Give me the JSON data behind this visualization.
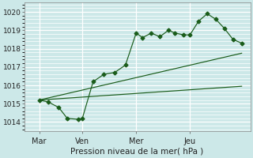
{
  "xlabel": "Pression niveau de la mer( hPa )",
  "bg_color": "#cce8e8",
  "grid_color": "#ffffff",
  "line_color": "#1a5c1a",
  "ylim": [
    1013.5,
    1020.5
  ],
  "xlim": [
    0.0,
    10.5
  ],
  "yticks": [
    1014,
    1015,
    1016,
    1017,
    1018,
    1019,
    1020
  ],
  "ytick_labels": [
    "1014",
    "1015",
    "1016",
    "1017",
    "1018",
    "1019",
    "1020"
  ],
  "xtick_positions": [
    0.7,
    2.7,
    5.2,
    7.7
  ],
  "xtick_labels": [
    "Mar",
    "Ven",
    "Mer",
    "Jeu"
  ],
  "vlines": [
    0.7,
    2.7,
    5.2,
    7.7
  ],
  "series1_x": [
    0.7,
    1.1,
    1.6,
    2.0,
    2.5,
    2.7,
    3.2,
    3.7,
    4.2,
    4.7,
    5.2,
    5.5,
    5.9,
    6.3,
    6.7,
    7.0,
    7.4,
    7.7,
    8.1,
    8.5,
    8.9,
    9.3,
    9.7,
    10.1
  ],
  "series1_y": [
    1015.2,
    1015.1,
    1014.8,
    1014.2,
    1014.15,
    1014.2,
    1016.2,
    1016.6,
    1016.7,
    1017.1,
    1018.85,
    1018.6,
    1018.85,
    1018.65,
    1019.0,
    1018.85,
    1018.75,
    1018.75,
    1019.5,
    1019.9,
    1019.6,
    1019.1,
    1018.5,
    1018.3
  ],
  "series2_x": [
    0.7,
    10.1
  ],
  "series2_y": [
    1015.2,
    1017.75
  ],
  "series3_x": [
    0.7,
    10.1
  ],
  "series3_y": [
    1015.2,
    1015.95
  ],
  "minor_ytick_step": 0.2
}
